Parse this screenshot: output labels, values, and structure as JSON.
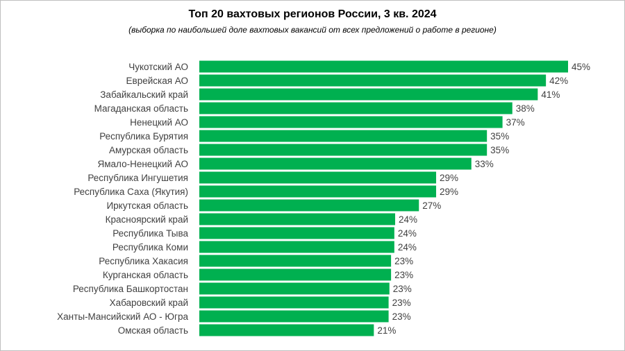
{
  "title": "Топ 20 вахтовых регионов России, 3 кв. 2024",
  "subtitle": "(выборка по наибольшей доле вахтовых вакансий от всех предложений о работе в  регионе)",
  "colors": {
    "bar": "#00b050",
    "label": "#404040",
    "border": "#bfbfbf"
  },
  "chart_data": {
    "type": "bar",
    "orientation": "horizontal",
    "title": "Топ 20 вахтовых регионов России, 3 кв. 2024",
    "subtitle": "(выборка по наибольшей доле вахтовых вакансий от всех предложений о работе в  регионе)",
    "unit": "%",
    "grid": false,
    "legend": "none",
    "xlim": [
      0,
      45
    ],
    "categories": [
      "Чукотский АО",
      "Еврейская АО",
      "Забайкальский край",
      "Магаданская область",
      "Ненецкий АО",
      "Республика Бурятия",
      "Амурская область",
      "Ямало-Ненецкий АО",
      "Республика Ингушетия",
      "Республика Саха (Якутия)",
      "Иркутская область",
      "Красноярский край",
      "Республика Тыва",
      "Республика Коми",
      "Республика Хакасия",
      "Курганская область",
      "Республика Башкортостан",
      "Хабаровский край",
      "Ханты-Мансийский АО - Югра",
      "Омская область"
    ],
    "values": [
      45,
      42,
      41,
      38,
      37,
      35,
      35,
      33,
      29,
      29,
      27,
      24,
      24,
      24,
      23,
      23,
      23,
      23,
      23,
      21
    ],
    "bar_values_precise": [
      45,
      42.3,
      41.3,
      38.2,
      37,
      35.1,
      35.1,
      33.2,
      28.9,
      28.9,
      26.8,
      23.9,
      23.8,
      23.8,
      23.4,
      23.4,
      23.2,
      23.1,
      23.1,
      21.3
    ],
    "data_labels": [
      "45%",
      "42%",
      "41%",
      "38%",
      "37%",
      "35%",
      "35%",
      "33%",
      "29%",
      "29%",
      "27%",
      "24%",
      "24%",
      "24%",
      "23%",
      "23%",
      "23%",
      "23%",
      "23%",
      "21%"
    ]
  }
}
